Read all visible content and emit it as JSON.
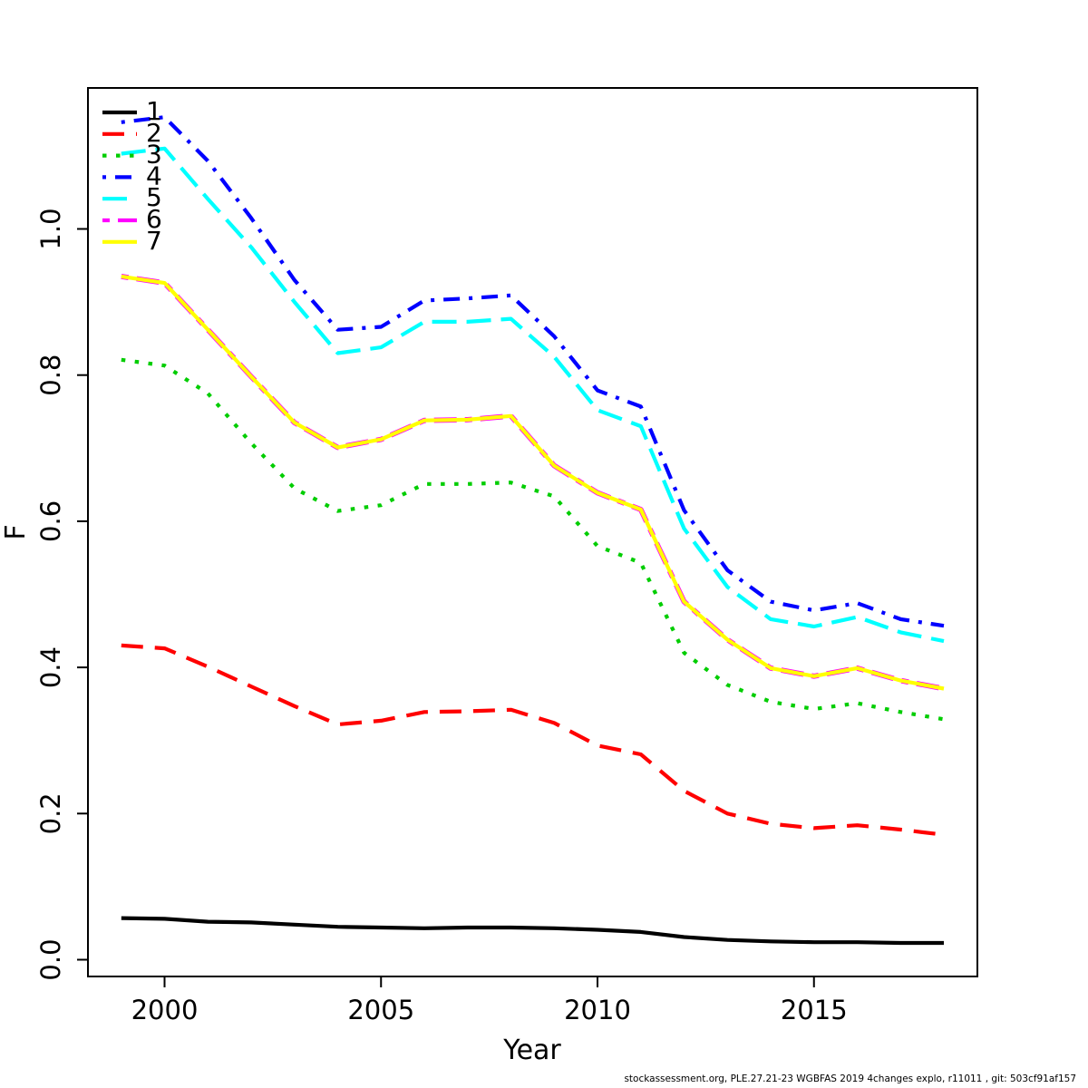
{
  "figure": {
    "footer": "stockassessment.org, PLE.27.21-23 WGBFAS 2019 4changes explo, r11011 , git: 503cf91af157"
  },
  "chart_data": {
    "type": "line",
    "title": "",
    "xlabel": "Year",
    "ylabel": "F",
    "grid": false,
    "legend_position": "topleft",
    "xlim": [
      1998.2,
      2018.8
    ],
    "ylim": [
      -0.023,
      1.198
    ],
    "x_ticks": [
      2000,
      2005,
      2010,
      2015
    ],
    "y_ticks": [
      0.0,
      0.2,
      0.4,
      0.6,
      0.8,
      1.0
    ],
    "y_tick_labels": [
      "0.0",
      "0.2",
      "0.4",
      "0.6",
      "0.8",
      "1.0"
    ],
    "x": [
      1999,
      2000,
      2001,
      2002,
      2003,
      2004,
      2005,
      2006,
      2007,
      2008,
      2009,
      2010,
      2011,
      2012,
      2013,
      2014,
      2015,
      2016,
      2017,
      2018
    ],
    "series": [
      {
        "name": "1",
        "color": "#000000",
        "linetype": "solid",
        "values": [
          0.057,
          0.056,
          0.052,
          0.051,
          0.048,
          0.045,
          0.044,
          0.043,
          0.044,
          0.044,
          0.043,
          0.041,
          0.038,
          0.031,
          0.027,
          0.025,
          0.024,
          0.024,
          0.023,
          0.023
        ]
      },
      {
        "name": "2",
        "color": "#FF0000",
        "linetype": "dashed",
        "values": [
          0.43,
          0.426,
          0.401,
          0.374,
          0.347,
          0.322,
          0.327,
          0.339,
          0.34,
          0.342,
          0.324,
          0.293,
          0.281,
          0.231,
          0.2,
          0.186,
          0.18,
          0.184,
          0.178,
          0.171
        ]
      },
      {
        "name": "3",
        "color": "#00CD00",
        "linetype": "dotted",
        "values": [
          0.821,
          0.813,
          0.775,
          0.707,
          0.645,
          0.614,
          0.622,
          0.651,
          0.651,
          0.653,
          0.634,
          0.566,
          0.543,
          0.42,
          0.376,
          0.353,
          0.343,
          0.351,
          0.339,
          0.329
        ]
      },
      {
        "name": "4",
        "color": "#0000FF",
        "linetype": "dotdash",
        "values": [
          1.146,
          1.153,
          1.093,
          1.015,
          0.93,
          0.862,
          0.866,
          0.902,
          0.905,
          0.909,
          0.853,
          0.779,
          0.757,
          0.615,
          0.533,
          0.49,
          0.478,
          0.488,
          0.466,
          0.457
        ]
      },
      {
        "name": "5",
        "color": "#00FFFF",
        "linetype": "longdash",
        "values": [
          1.103,
          1.11,
          1.041,
          0.975,
          0.9,
          0.83,
          0.838,
          0.873,
          0.873,
          0.877,
          0.825,
          0.752,
          0.73,
          0.59,
          0.51,
          0.466,
          0.456,
          0.469,
          0.448,
          0.436
        ]
      },
      {
        "name": "6",
        "color": "#FF00FF",
        "linetype": "twodash",
        "values": [
          0.935,
          0.926,
          0.862,
          0.798,
          0.735,
          0.701,
          0.712,
          0.738,
          0.739,
          0.744,
          0.676,
          0.639,
          0.616,
          0.49,
          0.438,
          0.399,
          0.388,
          0.399,
          0.382,
          0.371
        ]
      },
      {
        "name": "7",
        "color": "#FFFF00",
        "linetype": "solid",
        "values": [
          0.935,
          0.926,
          0.862,
          0.798,
          0.735,
          0.701,
          0.712,
          0.738,
          0.739,
          0.744,
          0.676,
          0.639,
          0.616,
          0.49,
          0.438,
          0.399,
          0.388,
          0.399,
          0.382,
          0.371
        ]
      }
    ]
  }
}
